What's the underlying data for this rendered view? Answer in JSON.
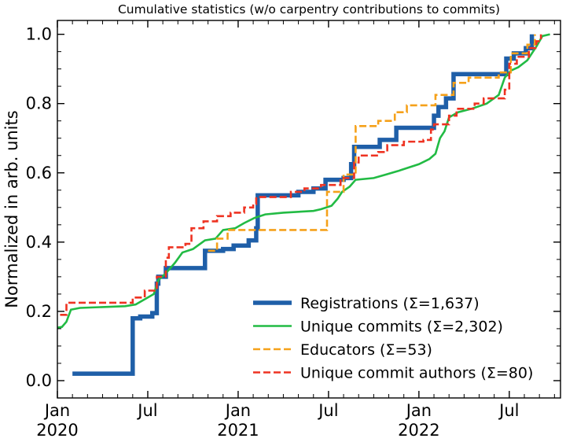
{
  "chart_data": {
    "type": "line",
    "title": "Cumulative statistics (w/o carpentry contributions to commits)",
    "xlabel": "",
    "ylabel": "Normalized in arb. units",
    "xlim": [
      0,
      33.4
    ],
    "ylim": [
      -0.05,
      1.04
    ],
    "x_ticks": [
      {
        "x": 0,
        "label": "Jan",
        "sublabel": "2020"
      },
      {
        "x": 6,
        "label": "Jul",
        "sublabel": ""
      },
      {
        "x": 12,
        "label": "Jan",
        "sublabel": "2021"
      },
      {
        "x": 18,
        "label": "Jul",
        "sublabel": ""
      },
      {
        "x": 24,
        "label": "Jan",
        "sublabel": "2022"
      },
      {
        "x": 30,
        "label": "Jul",
        "sublabel": ""
      }
    ],
    "y_ticks": [
      0.0,
      0.2,
      0.4,
      0.6,
      0.8,
      1.0
    ],
    "y_tick_labels": [
      "0.0",
      "0.2",
      "0.4",
      "0.6",
      "0.8",
      "1.0"
    ],
    "legend_position": "lower-right",
    "series": [
      {
        "name": "Registrations  (Σ=1,637)",
        "color": "#1f5fa8",
        "style": "solid",
        "width": 5.5,
        "points": [
          [
            1.0,
            0.02
          ],
          [
            5.0,
            0.02
          ],
          [
            5.0,
            0.18
          ],
          [
            5.5,
            0.18
          ],
          [
            5.5,
            0.185
          ],
          [
            6.3,
            0.185
          ],
          [
            6.3,
            0.195
          ],
          [
            6.6,
            0.195
          ],
          [
            6.6,
            0.28
          ],
          [
            6.7,
            0.28
          ],
          [
            6.7,
            0.3
          ],
          [
            7.2,
            0.3
          ],
          [
            7.2,
            0.325
          ],
          [
            9.8,
            0.325
          ],
          [
            9.8,
            0.375
          ],
          [
            11.0,
            0.375
          ],
          [
            11.0,
            0.38
          ],
          [
            11.7,
            0.38
          ],
          [
            11.7,
            0.39
          ],
          [
            12.7,
            0.39
          ],
          [
            12.7,
            0.405
          ],
          [
            13.2,
            0.405
          ],
          [
            13.2,
            0.44
          ],
          [
            13.3,
            0.44
          ],
          [
            13.3,
            0.535
          ],
          [
            16.0,
            0.535
          ],
          [
            16.0,
            0.545
          ],
          [
            17.0,
            0.545
          ],
          [
            17.0,
            0.555
          ],
          [
            17.8,
            0.555
          ],
          [
            17.8,
            0.58
          ],
          [
            19.0,
            0.58
          ],
          [
            19.0,
            0.585
          ],
          [
            19.5,
            0.585
          ],
          [
            19.5,
            0.625
          ],
          [
            19.7,
            0.625
          ],
          [
            19.7,
            0.675
          ],
          [
            21.4,
            0.675
          ],
          [
            21.4,
            0.695
          ],
          [
            22.5,
            0.695
          ],
          [
            22.5,
            0.73
          ],
          [
            25.0,
            0.73
          ],
          [
            25.0,
            0.765
          ],
          [
            25.3,
            0.765
          ],
          [
            25.3,
            0.79
          ],
          [
            25.8,
            0.79
          ],
          [
            25.8,
            0.815
          ],
          [
            26.3,
            0.815
          ],
          [
            26.3,
            0.885
          ],
          [
            29.8,
            0.885
          ],
          [
            29.8,
            0.93
          ],
          [
            30.3,
            0.93
          ],
          [
            30.3,
            0.945
          ],
          [
            31.1,
            0.945
          ],
          [
            31.1,
            0.96
          ],
          [
            31.5,
            0.96
          ],
          [
            31.5,
            1.0
          ]
        ]
      },
      {
        "name": "Unique commits (Σ=2,302)",
        "color": "#22bb44",
        "style": "solid",
        "width": 2.6,
        "points": [
          [
            -0.5,
            0.15
          ],
          [
            0.3,
            0.155
          ],
          [
            0.6,
            0.17
          ],
          [
            0.9,
            0.205
          ],
          [
            1.5,
            0.21
          ],
          [
            4.5,
            0.215
          ],
          [
            5.2,
            0.22
          ],
          [
            5.8,
            0.235
          ],
          [
            6.4,
            0.25
          ],
          [
            6.7,
            0.29
          ],
          [
            7.2,
            0.31
          ],
          [
            7.8,
            0.34
          ],
          [
            8.3,
            0.37
          ],
          [
            9.0,
            0.38
          ],
          [
            9.8,
            0.405
          ],
          [
            10.5,
            0.41
          ],
          [
            11.0,
            0.435
          ],
          [
            11.8,
            0.44
          ],
          [
            12.4,
            0.455
          ],
          [
            13.1,
            0.47
          ],
          [
            13.8,
            0.48
          ],
          [
            15.0,
            0.485
          ],
          [
            17.0,
            0.49
          ],
          [
            17.5,
            0.495
          ],
          [
            18.2,
            0.505
          ],
          [
            18.6,
            0.525
          ],
          [
            18.9,
            0.545
          ],
          [
            19.4,
            0.56
          ],
          [
            19.8,
            0.58
          ],
          [
            21.0,
            0.585
          ],
          [
            21.8,
            0.595
          ],
          [
            22.6,
            0.605
          ],
          [
            23.3,
            0.615
          ],
          [
            24.0,
            0.625
          ],
          [
            24.7,
            0.64
          ],
          [
            25.1,
            0.655
          ],
          [
            25.4,
            0.7
          ],
          [
            25.7,
            0.72
          ],
          [
            26.0,
            0.76
          ],
          [
            26.6,
            0.775
          ],
          [
            27.5,
            0.785
          ],
          [
            28.5,
            0.8
          ],
          [
            29.3,
            0.825
          ],
          [
            29.7,
            0.875
          ],
          [
            30.1,
            0.895
          ],
          [
            30.6,
            0.905
          ],
          [
            31.2,
            0.925
          ],
          [
            31.8,
            0.965
          ],
          [
            32.2,
            0.995
          ],
          [
            32.7,
            1.0
          ]
        ]
      },
      {
        "name": "Educators (Σ=53)",
        "color": "#f5a11a",
        "style": "dashed",
        "width": 2.6,
        "points": [
          [
            10.0,
            0.375
          ],
          [
            10.6,
            0.375
          ],
          [
            10.6,
            0.41
          ],
          [
            11.3,
            0.41
          ],
          [
            11.3,
            0.435
          ],
          [
            15.3,
            0.435
          ],
          [
            17.9,
            0.435
          ],
          [
            17.9,
            0.545
          ],
          [
            19.0,
            0.545
          ],
          [
            19.0,
            0.595
          ],
          [
            19.8,
            0.595
          ],
          [
            19.8,
            0.735
          ],
          [
            21.3,
            0.735
          ],
          [
            21.3,
            0.75
          ],
          [
            22.4,
            0.75
          ],
          [
            22.4,
            0.775
          ],
          [
            23.2,
            0.775
          ],
          [
            23.2,
            0.795
          ],
          [
            25.1,
            0.795
          ],
          [
            25.1,
            0.825
          ],
          [
            26.3,
            0.825
          ],
          [
            26.3,
            0.86
          ],
          [
            27.3,
            0.86
          ],
          [
            27.3,
            0.875
          ],
          [
            29.3,
            0.875
          ],
          [
            29.3,
            0.89
          ],
          [
            30.1,
            0.89
          ],
          [
            30.1,
            0.945
          ],
          [
            31.2,
            0.945
          ],
          [
            31.2,
            0.97
          ],
          [
            31.7,
            0.97
          ],
          [
            31.7,
            1.0
          ]
        ]
      },
      {
        "name": "Unique commit authors (Σ=80)",
        "color": "#ee3322",
        "style": "dashed",
        "width": 2.6,
        "points": [
          [
            -0.5,
            0.19
          ],
          [
            0.6,
            0.19
          ],
          [
            0.6,
            0.225
          ],
          [
            5.0,
            0.225
          ],
          [
            5.0,
            0.24
          ],
          [
            5.8,
            0.24
          ],
          [
            5.8,
            0.26
          ],
          [
            6.6,
            0.26
          ],
          [
            6.6,
            0.3
          ],
          [
            7.2,
            0.3
          ],
          [
            7.2,
            0.355
          ],
          [
            7.4,
            0.355
          ],
          [
            7.4,
            0.385
          ],
          [
            8.5,
            0.385
          ],
          [
            8.5,
            0.395
          ],
          [
            8.9,
            0.395
          ],
          [
            8.9,
            0.44
          ],
          [
            9.7,
            0.44
          ],
          [
            9.7,
            0.46
          ],
          [
            10.6,
            0.46
          ],
          [
            10.6,
            0.475
          ],
          [
            11.5,
            0.475
          ],
          [
            11.5,
            0.485
          ],
          [
            12.4,
            0.485
          ],
          [
            12.4,
            0.5
          ],
          [
            13.0,
            0.5
          ],
          [
            13.0,
            0.51
          ],
          [
            13.2,
            0.51
          ],
          [
            13.2,
            0.53
          ],
          [
            15.5,
            0.53
          ],
          [
            15.5,
            0.545
          ],
          [
            16.4,
            0.545
          ],
          [
            16.4,
            0.555
          ],
          [
            17.5,
            0.555
          ],
          [
            17.5,
            0.565
          ],
          [
            18.8,
            0.565
          ],
          [
            18.8,
            0.585
          ],
          [
            19.7,
            0.585
          ],
          [
            19.7,
            0.63
          ],
          [
            20.0,
            0.63
          ],
          [
            20.0,
            0.65
          ],
          [
            21.3,
            0.65
          ],
          [
            21.3,
            0.66
          ],
          [
            21.9,
            0.66
          ],
          [
            21.9,
            0.68
          ],
          [
            23.0,
            0.68
          ],
          [
            23.0,
            0.69
          ],
          [
            24.3,
            0.69
          ],
          [
            24.3,
            0.695
          ],
          [
            24.8,
            0.695
          ],
          [
            24.8,
            0.725
          ],
          [
            25.0,
            0.725
          ],
          [
            25.0,
            0.74
          ],
          [
            26.0,
            0.74
          ],
          [
            26.0,
            0.765
          ],
          [
            26.5,
            0.765
          ],
          [
            26.5,
            0.785
          ],
          [
            27.7,
            0.785
          ],
          [
            27.7,
            0.8
          ],
          [
            28.3,
            0.8
          ],
          [
            28.3,
            0.815
          ],
          [
            29.7,
            0.815
          ],
          [
            29.7,
            0.84
          ],
          [
            30.0,
            0.84
          ],
          [
            30.0,
            0.915
          ],
          [
            30.5,
            0.915
          ],
          [
            30.5,
            0.935
          ],
          [
            31.3,
            0.935
          ],
          [
            31.3,
            0.96
          ],
          [
            31.8,
            0.96
          ],
          [
            31.8,
            0.98
          ],
          [
            32.1,
            0.98
          ],
          [
            32.1,
            1.0
          ]
        ]
      }
    ]
  }
}
